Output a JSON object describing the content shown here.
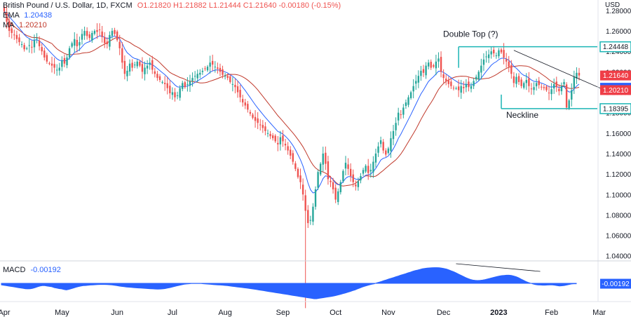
{
  "header": {
    "symbol": "British Pound / U.S. Dollar, 1D, FXCM",
    "ohlc": "O1.21820 H1.21882 L1.21444 C1.21640 -0.00180 (-0.15%)",
    "ema_label": "EMA",
    "ema_value": "1.20438",
    "ma_label": "MA",
    "ma_value": "1.20210",
    "macd_label": "MACD",
    "macd_value": "-0.00192"
  },
  "colors": {
    "up": "#26a69a",
    "down": "#ef5350",
    "ema": "#2962ff",
    "ma": "#c0392b",
    "drawing": "#1bb5b5",
    "trendline": "#131722",
    "macd_fill": "#2962ff",
    "badge_red": "#ef3e47",
    "badge_blue": "#2962ff"
  },
  "chart_data": {
    "type": "candlestick",
    "currency_label": "USD",
    "ylim": [
      1.035,
      1.282
    ],
    "x_ticks": [
      {
        "label": "Apr",
        "i": 0
      },
      {
        "label": "May",
        "i": 23
      },
      {
        "label": "Jun",
        "i": 45
      },
      {
        "label": "Jul",
        "i": 67
      },
      {
        "label": "Aug",
        "i": 88
      },
      {
        "label": "Sep",
        "i": 111
      },
      {
        "label": "Oct",
        "i": 132
      },
      {
        "label": "Nov",
        "i": 153
      },
      {
        "label": "Dec",
        "i": 175
      },
      {
        "label": "2023",
        "i": 197,
        "bold": true
      },
      {
        "label": "Feb",
        "i": 218
      },
      {
        "label": "Mar",
        "i": 237
      }
    ],
    "y_ticks": [
      "1.04000",
      "1.06000",
      "1.08000",
      "1.10000",
      "1.12000",
      "1.14000",
      "1.16000",
      "1.18000",
      "1.20000",
      "1.22000",
      "1.24000",
      "1.26000",
      "1.28000"
    ],
    "closes": [
      1.279,
      1.269,
      1.26,
      1.258,
      1.256,
      1.252,
      1.249,
      1.247,
      1.242,
      1.243,
      1.246,
      1.244,
      1.251,
      1.253,
      1.245,
      1.24,
      1.234,
      1.23,
      1.228,
      1.226,
      1.224,
      1.222,
      1.224,
      1.231,
      1.228,
      1.234,
      1.243,
      1.248,
      1.252,
      1.245,
      1.249,
      1.257,
      1.26,
      1.255,
      1.253,
      1.258,
      1.26,
      1.259,
      1.261,
      1.254,
      1.248,
      1.247,
      1.256,
      1.26,
      1.257,
      1.251,
      1.243,
      1.229,
      1.218,
      1.221,
      1.228,
      1.224,
      1.227,
      1.23,
      1.226,
      1.22,
      1.224,
      1.226,
      1.229,
      1.222,
      1.218,
      1.214,
      1.212,
      1.21,
      1.208,
      1.204,
      1.199,
      1.2,
      1.195,
      1.197,
      1.204,
      1.209,
      1.205,
      1.208,
      1.211,
      1.214,
      1.216,
      1.218,
      1.219,
      1.221,
      1.223,
      1.225,
      1.229,
      1.227,
      1.225,
      1.223,
      1.22,
      1.217,
      1.216,
      1.214,
      1.21,
      1.208,
      1.205,
      1.2,
      1.195,
      1.19,
      1.187,
      1.183,
      1.179,
      1.175,
      1.172,
      1.17,
      1.168,
      1.165,
      1.162,
      1.16,
      1.157,
      1.155,
      1.152,
      1.149,
      1.156,
      1.152,
      1.148,
      1.143,
      1.138,
      1.132,
      1.125,
      1.117,
      1.112,
      1.1,
      1.084,
      1.072,
      1.075,
      1.088,
      1.105,
      1.122,
      1.13,
      1.14,
      1.13,
      1.115,
      1.112,
      1.105,
      1.095,
      1.103,
      1.112,
      1.123,
      1.131,
      1.125,
      1.118,
      1.112,
      1.108,
      1.113,
      1.118,
      1.124,
      1.128,
      1.121,
      1.124,
      1.132,
      1.14,
      1.147,
      1.153,
      1.143,
      1.139,
      1.145,
      1.155,
      1.162,
      1.17,
      1.18,
      1.178,
      1.185,
      1.19,
      1.195,
      1.2,
      1.206,
      1.211,
      1.216,
      1.221,
      1.219,
      1.226,
      1.229,
      1.224,
      1.225,
      1.23,
      1.233,
      1.22,
      1.214,
      1.211,
      1.208,
      1.206,
      1.204,
      1.204,
      1.202,
      1.206,
      1.204,
      1.208,
      1.205,
      1.206,
      1.211,
      1.215,
      1.22,
      1.226,
      1.232,
      1.235,
      1.237,
      1.24,
      1.238,
      1.236,
      1.241,
      1.239,
      1.234,
      1.23,
      1.225,
      1.218,
      1.209,
      1.215,
      1.21,
      1.206,
      1.209,
      1.212,
      1.206,
      1.203,
      1.205,
      1.209,
      1.207,
      1.205,
      1.204,
      1.202,
      1.199,
      1.203,
      1.208,
      1.205,
      1.201,
      1.206,
      1.21,
      1.185,
      1.192,
      1.202,
      1.215,
      1.219,
      1.2164
    ],
    "ema": {
      "name": "EMA",
      "value": 1.20438,
      "span": 10
    },
    "ma": {
      "name": "MA",
      "value": 1.2021,
      "window": 20
    },
    "price_labels": [
      {
        "price": 1.24448,
        "label": "1.24448",
        "kind": "outline"
      },
      {
        "price": 1.2164,
        "label": "1.21640",
        "kind": "red"
      },
      {
        "price": 1.20438,
        "label": "1.20438",
        "kind": "blue"
      },
      {
        "price": 1.2021,
        "label": "1.20210",
        "kind": "red"
      },
      {
        "price": 1.18395,
        "label": "1.18395",
        "kind": "outline"
      }
    ],
    "annotations": {
      "top_line": {
        "price": 1.24448,
        "from_i": 181,
        "text": "Double Top (?)"
      },
      "neck_line": {
        "price": 1.18395,
        "from_i": 198,
        "text": "Neckline"
      },
      "resistance_line": {
        "from": {
          "i": 203,
          "price": 1.241
        },
        "to": {
          "i": 243,
          "price": 1.198
        }
      },
      "macd_divergence_line": {
        "from_i": 181,
        "to_i": 215
      }
    },
    "macd": {
      "name": "MACD",
      "last": -0.00192,
      "last_label": "-0.00192",
      "values": [
        -0.2,
        -0.25,
        -0.3,
        -0.35,
        -0.4,
        -0.45,
        -0.5,
        -0.55,
        -0.6,
        -0.65,
        -0.7,
        -0.72,
        -0.7,
        -0.65,
        -0.55,
        -0.45,
        -0.35,
        -0.3,
        -0.3,
        -0.35,
        -0.4,
        -0.45,
        -0.55,
        -0.62,
        -0.68,
        -0.72,
        -0.8,
        -0.85,
        -0.78,
        -0.7,
        -0.6,
        -0.5,
        -0.42,
        -0.35,
        -0.3,
        -0.28,
        -0.25,
        -0.22,
        -0.2,
        -0.18,
        -0.16,
        -0.15,
        -0.15,
        -0.15,
        -0.16,
        -0.18,
        -0.2,
        -0.25,
        -0.3,
        -0.35,
        -0.4,
        -0.44,
        -0.48,
        -0.5,
        -0.52,
        -0.55,
        -0.58,
        -0.6,
        -0.62,
        -0.64,
        -0.66,
        -0.68,
        -0.7,
        -0.72,
        -0.74,
        -0.75,
        -0.74,
        -0.72,
        -0.68,
        -0.62,
        -0.55,
        -0.48,
        -0.4,
        -0.32,
        -0.25,
        -0.18,
        -0.12,
        -0.08,
        -0.05,
        -0.03,
        -0.02,
        -0.02,
        -0.02,
        -0.03,
        -0.05,
        -0.08,
        -0.1,
        -0.13,
        -0.16,
        -0.18,
        -0.2,
        -0.22,
        -0.24,
        -0.27,
        -0.3,
        -0.34,
        -0.38,
        -0.42,
        -0.46,
        -0.5,
        -0.54,
        -0.58,
        -0.62,
        -0.66,
        -0.7,
        -0.75,
        -0.8,
        -0.85,
        -0.9,
        -0.95,
        -1.0,
        -1.05,
        -1.1,
        -1.15,
        -1.2,
        -1.25,
        -1.3,
        -1.35,
        -1.4,
        -1.45,
        -1.5,
        -1.55,
        -1.6,
        -1.65,
        -1.7,
        -1.75,
        -1.8,
        -1.85,
        -1.9,
        -1.95,
        -2.0,
        -2.0,
        -1.95,
        -1.9,
        -1.85,
        -1.8,
        -1.75,
        -1.7,
        -1.65,
        -1.58,
        -1.5,
        -1.42,
        -1.34,
        -1.25,
        -1.15,
        -1.05,
        -0.95,
        -0.85,
        -0.72,
        -0.6,
        -0.48,
        -0.38,
        -0.28,
        -0.2,
        -0.12,
        -0.05,
        0.05,
        0.15,
        0.25,
        0.35,
        0.45,
        0.55,
        0.65,
        0.75,
        0.85,
        0.95,
        1.05,
        1.15,
        1.25,
        1.35,
        1.45,
        1.55,
        1.65,
        1.72,
        1.8,
        1.88,
        1.94,
        1.98,
        2.0,
        2.02,
        2.04,
        2.04,
        2.02,
        1.98,
        1.92,
        1.85,
        1.75,
        1.62,
        1.5,
        1.35,
        1.2,
        1.05,
        0.9,
        0.75,
        0.62,
        0.5,
        0.42,
        0.38,
        0.36,
        0.38,
        0.42,
        0.48,
        0.56,
        0.64,
        0.72,
        0.8,
        0.88,
        0.95,
        1.0,
        1.03,
        1.05,
        1.05,
        1.02,
        0.95,
        0.85,
        0.72,
        0.55,
        0.4,
        0.25,
        0.12,
        0.02,
        -0.08,
        -0.16,
        -0.2,
        -0.22,
        -0.24,
        -0.24,
        -0.22,
        -0.2,
        -0.2,
        -0.24,
        -0.3,
        -0.34,
        -0.32,
        -0.28,
        -0.22,
        -0.15,
        -0.08,
        -0.05,
        -0.05
      ]
    }
  }
}
